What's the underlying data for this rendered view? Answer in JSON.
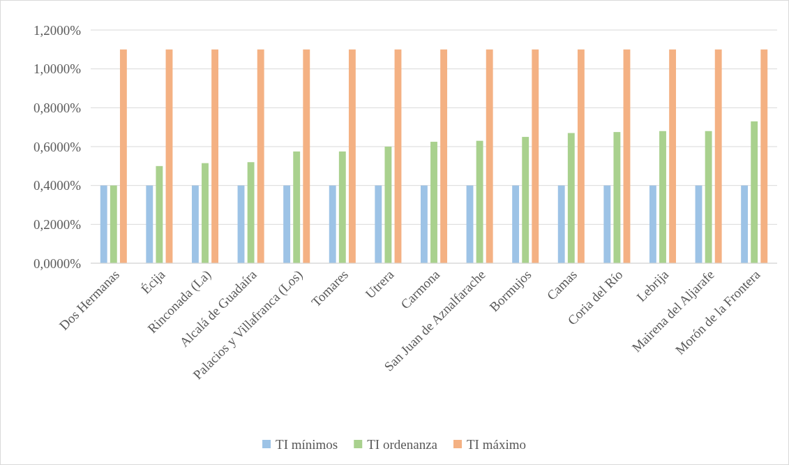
{
  "chart_data": {
    "type": "bar",
    "categories": [
      "Dos Hermanas",
      "Écija",
      "Rinconada (La)",
      "Alcalá de Guadaíra",
      "Palacios y Villafranca (Los)",
      "Tomares",
      "Utrera",
      "Carmona",
      "San Juan de Aznalfarache",
      "Bormujos",
      "Camas",
      "Coria del Río",
      "Lebrija",
      "Mairena del Aljarafe",
      "Morón de la Frontera"
    ],
    "series": [
      {
        "name": "TI mínimos",
        "color": "#9dc3e6",
        "values": [
          0.4,
          0.4,
          0.4,
          0.4,
          0.4,
          0.4,
          0.4,
          0.4,
          0.4,
          0.4,
          0.4,
          0.4,
          0.4,
          0.4,
          0.4
        ]
      },
      {
        "name": "TI ordenanza",
        "color": "#a9d18e",
        "values": [
          0.4,
          0.5,
          0.515,
          0.52,
          0.575,
          0.575,
          0.6,
          0.625,
          0.63,
          0.65,
          0.67,
          0.675,
          0.68,
          0.68,
          0.73
        ]
      },
      {
        "name": "TI máximo",
        "color": "#f4b183",
        "values": [
          1.1,
          1.1,
          1.1,
          1.1,
          1.1,
          1.1,
          1.1,
          1.1,
          1.1,
          1.1,
          1.1,
          1.1,
          1.1,
          1.1,
          1.1
        ]
      }
    ],
    "ylim": [
      0,
      1.2
    ],
    "yticks": [
      {
        "value": 0,
        "label": "0,0000%"
      },
      {
        "value": 0.2,
        "label": "0,2000%"
      },
      {
        "value": 0.4,
        "label": "0,4000%"
      },
      {
        "value": 0.6,
        "label": "0,6000%"
      },
      {
        "value": 0.8,
        "label": "0,8000%"
      },
      {
        "value": 1,
        "label": "1,0000%"
      },
      {
        "value": 1.2,
        "label": "1,2000%"
      }
    ],
    "grid": "y",
    "legend": "bottom"
  }
}
